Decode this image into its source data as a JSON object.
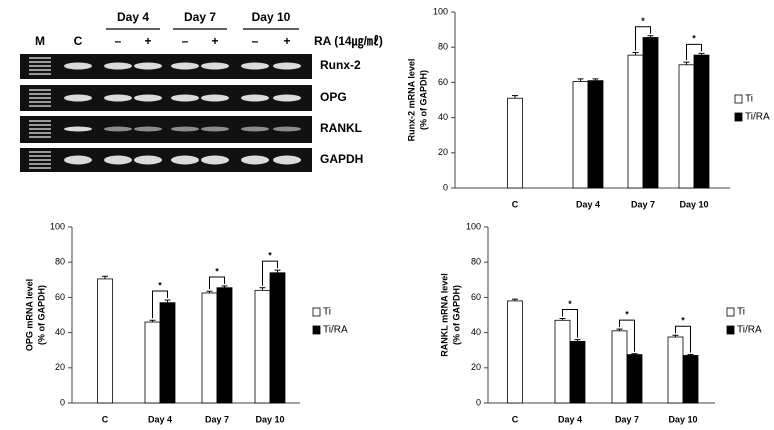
{
  "gel": {
    "lanes": [
      "M",
      "C"
    ],
    "days": [
      "Day 4",
      "Day 7",
      "Day 10"
    ],
    "treatments": [
      "–",
      "+"
    ],
    "ra_label": "RA (14㎍/㎖)",
    "genes": [
      "Runx-2",
      "OPG",
      "RANKL",
      "GAPDH"
    ]
  },
  "chart_data": [
    {
      "type": "bar",
      "ylabel": [
        "Runx-2 mRNA level",
        "(% of GAPDH)"
      ],
      "categories": [
        "C",
        "Day 4",
        "Day 7",
        "Day 10"
      ],
      "series": [
        {
          "name": "Ti",
          "color": "#ffffff",
          "values": [
            51,
            60.5,
            75.5,
            70
          ],
          "errors": [
            1.5,
            1.5,
            1.5,
            1.5
          ]
        },
        {
          "name": "Ti/RA",
          "color": "#000000",
          "values": [
            null,
            61,
            85.5,
            75.5
          ],
          "errors": [
            null,
            1,
            1,
            1
          ]
        }
      ],
      "significance": [
        null,
        null,
        "*",
        "*"
      ],
      "ylim": [
        0,
        100
      ],
      "yticks": [
        0,
        20,
        40,
        60,
        80,
        100
      ],
      "grid": false
    },
    {
      "type": "bar",
      "ylabel": [
        "OPG mRNA level",
        "(% of GAPDH)"
      ],
      "categories": [
        "C",
        "Day 4",
        "Day 7",
        "Day 10"
      ],
      "series": [
        {
          "name": "Ti",
          "color": "#ffffff",
          "values": [
            70.5,
            46,
            62.5,
            64
          ],
          "errors": [
            1.5,
            1,
            1,
            1.5
          ]
        },
        {
          "name": "Ti/RA",
          "color": "#000000",
          "values": [
            null,
            57,
            65.5,
            74
          ],
          "errors": [
            null,
            1.5,
            1,
            1.5
          ]
        }
      ],
      "significance": [
        null,
        "*",
        "*",
        "*"
      ],
      "ylim": [
        0,
        100
      ],
      "yticks": [
        0,
        20,
        40,
        60,
        80,
        100
      ],
      "grid": false
    },
    {
      "type": "bar",
      "ylabel": [
        "RANKL mRNA level",
        "(% of GAPDH)"
      ],
      "categories": [
        "C",
        "Day 4",
        "Day 7",
        "Day 10"
      ],
      "series": [
        {
          "name": "Ti",
          "color": "#ffffff",
          "values": [
            58,
            47,
            41,
            37.5
          ],
          "errors": [
            1,
            1,
            1,
            1
          ]
        },
        {
          "name": "Ti/RA",
          "color": "#000000",
          "values": [
            null,
            35,
            27.5,
            27
          ],
          "errors": [
            null,
            1,
            0.5,
            0.5
          ]
        }
      ],
      "significance": [
        null,
        "*",
        "*",
        "*"
      ],
      "ylim": [
        0,
        100
      ],
      "yticks": [
        0,
        20,
        40,
        60,
        80,
        100
      ],
      "grid": false
    }
  ]
}
